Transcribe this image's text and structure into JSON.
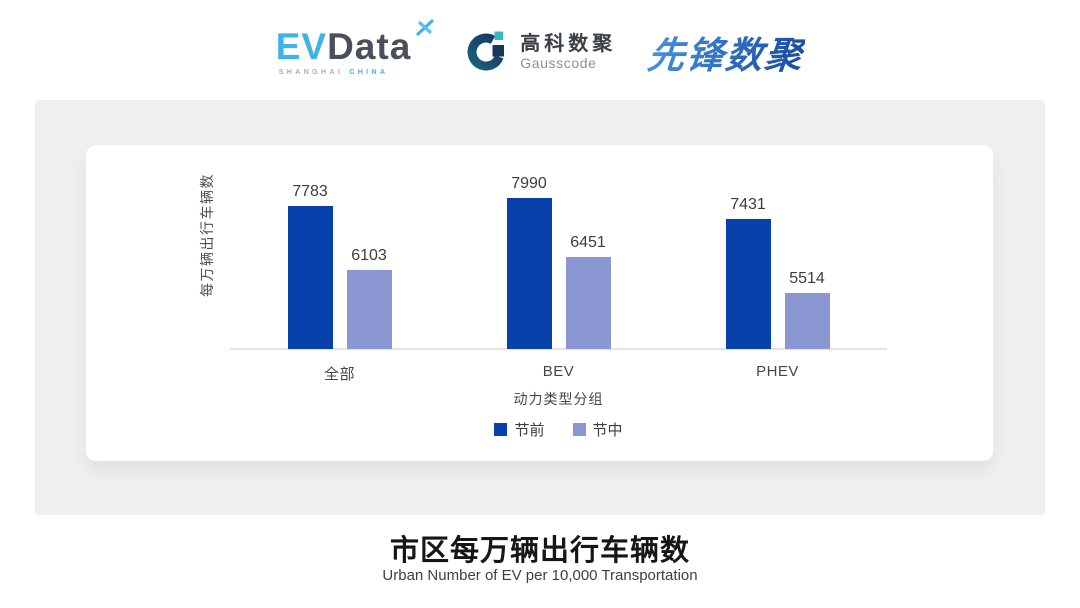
{
  "header": {
    "evdata": {
      "ev": "EV",
      "word": "Data",
      "sub_left": "SHANGHAI",
      "sub_right": "CHINA"
    },
    "gausscode": {
      "cn": "高科数聚",
      "en": "Gausscode"
    },
    "pioneer": {
      "text": "先锋数聚"
    }
  },
  "icons": {
    "evdata_x": "x-star-icon",
    "gausscode_g": "letter-g-icon",
    "legend_swatch": "square-swatch-icon"
  },
  "colors": {
    "series_pre_holiday": "#0841ab",
    "series_mid_holiday": "#8b97d2",
    "panel_background": "#f0f0f0",
    "evdata_blue": "#3db4e8",
    "pioneer_blue": "#2a6fc4"
  },
  "chart_data": {
    "type": "bar",
    "title": "市区每万辆出行车辆数",
    "subtitle": "Urban Number of EV per 10,000 Transportation",
    "categories": [
      "全部",
      "BEV",
      "PHEV"
    ],
    "series": [
      {
        "name": "节前",
        "color": "#0841ab",
        "values": [
          7783,
          7990,
          7431
        ]
      },
      {
        "name": "节中",
        "color": "#8b97d2",
        "values": [
          6103,
          6451,
          5514
        ]
      }
    ],
    "xlabel": "动力类型分组",
    "ylabel": "每万辆出行车辆数",
    "ylim": [
      4050,
      9390
    ],
    "y_axis_ticks_visible": false,
    "grid": false,
    "legend_position": "bottom",
    "value_labels": true
  }
}
